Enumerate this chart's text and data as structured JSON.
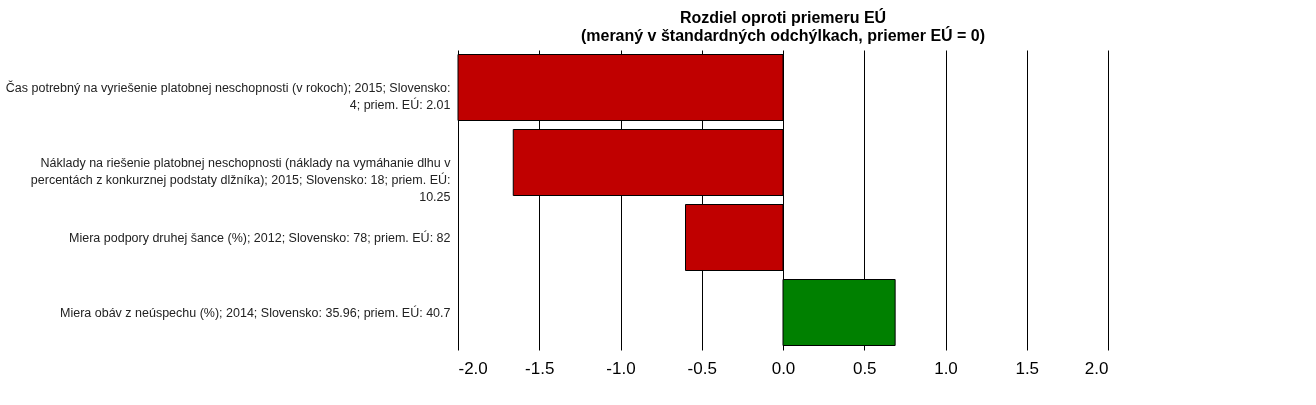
{
  "chart_data": {
    "type": "bar",
    "orientation": "horizontal",
    "title": "Rozdiel oproti priemeru EÚ\n(meraný v štandardných odchýlkach, priemer EÚ = 0)",
    "categories": [
      "Čas potrebný na vyriešenie platobnej neschopnosti (v rokoch); 2015; Slovensko: 4; priem. EÚ: 2.01",
      "Náklady na riešenie platobnej neschopnosti (náklady na vymáhanie dlhu v percentách z konkurznej podstaty dlžníka); 2015; Slovensko: 18; priem. EÚ: 10.25",
      "Miera podpory druhej šance (%); 2012; Slovensko: 78; priem. EÚ: 82",
      "Miera obáv z neúspechu (%); 2014; Slovensko: 35.96; priem. EÚ: 40.7"
    ],
    "values": [
      -2.0,
      -1.66,
      -0.6,
      0.69
    ],
    "colors": [
      "#c00000",
      "#c00000",
      "#c00000",
      "#008000"
    ],
    "xlim": [
      -2,
      2
    ],
    "xticks": [
      {
        "value": -2,
        "label": "-2.0"
      },
      {
        "value": -1.5,
        "label": "-1.5"
      },
      {
        "value": -1,
        "label": "-1.0"
      },
      {
        "value": -0.5,
        "label": "-0.5"
      },
      {
        "value": 0,
        "label": "0.0"
      },
      {
        "value": 0.5,
        "label": "0.5"
      },
      {
        "value": 1,
        "label": "1.0"
      },
      {
        "value": 1.5,
        "label": "1.5"
      },
      {
        "value": 2,
        "label": "2.0"
      }
    ],
    "grid": "x"
  }
}
